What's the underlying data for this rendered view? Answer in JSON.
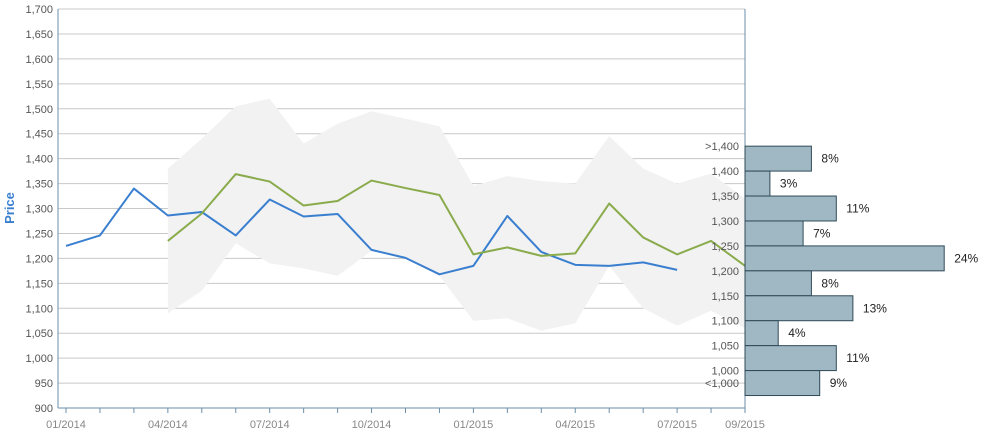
{
  "chart_data": {
    "type": "line",
    "ylabel": "Price",
    "ylim": [
      900,
      1700
    ],
    "yticks": [
      900,
      950,
      1000,
      1050,
      1100,
      1150,
      1200,
      1250,
      1300,
      1350,
      1400,
      1450,
      1500,
      1550,
      1600,
      1650,
      1700
    ],
    "ytick_labels": [
      "900",
      "950",
      "1,000",
      "1,050",
      "1,100",
      "1,150",
      "1,200",
      "1,250",
      "1,300",
      "1,350",
      "1,400",
      "1,450",
      "1,500",
      "1,550",
      "1,600",
      "1,650",
      "1,700"
    ],
    "xlim": [
      "2014-01",
      "2015-09"
    ],
    "xtick_labels": [
      {
        "date": "2014-01",
        "label": "01/2014"
      },
      {
        "date": "2014-04",
        "label": "04/2014"
      },
      {
        "date": "2014-07",
        "label": "07/2014"
      },
      {
        "date": "2014-10",
        "label": "10/2014"
      },
      {
        "date": "2015-01",
        "label": "01/2015"
      },
      {
        "date": "2015-04",
        "label": "04/2015"
      },
      {
        "date": "2015-07",
        "label": "07/2015"
      },
      {
        "date": "2015-09",
        "label": "09/2015"
      }
    ],
    "grid": true,
    "colors": {
      "series_blue": "#3a7fcf",
      "series_green": "#8aab4c",
      "band": "#f2f2f2",
      "bar_fill": "#a0b8c4",
      "bar_stroke": "#2f4a58",
      "axis": "#6b8fa8",
      "grid": "#c8c8c8",
      "tick_text": "#555555",
      "ylabel": "#3a7fcf"
    },
    "series": [
      {
        "color": "blue",
        "x": [
          "2014-01",
          "2014-02",
          "2014-03",
          "2014-04",
          "2014-05",
          "2014-06",
          "2014-07",
          "2014-08",
          "2014-09",
          "2014-10",
          "2014-11",
          "2014-12",
          "2015-01",
          "2015-02",
          "2015-03",
          "2015-04",
          "2015-05",
          "2015-06",
          "2015-07"
        ],
        "values": [
          1225,
          1246,
          1340,
          1286,
          1293,
          1246,
          1318,
          1284,
          1289,
          1217,
          1201,
          1168,
          1185,
          1285,
          1213,
          1187,
          1185,
          1192,
          1177
        ]
      },
      {
        "color": "green",
        "x": [
          "2014-04",
          "2014-05",
          "2014-06",
          "2014-07",
          "2014-08",
          "2014-09",
          "2014-10",
          "2014-11",
          "2014-12",
          "2015-01",
          "2015-02",
          "2015-03",
          "2015-04",
          "2015-05",
          "2015-06",
          "2015-07",
          "2015-08",
          "2015-09"
        ],
        "values": [
          1235,
          1290,
          1369,
          1354,
          1306,
          1315,
          1356,
          1341,
          1327,
          1208,
          1222,
          1205,
          1210,
          1310,
          1242,
          1208,
          1235,
          1185
        ]
      }
    ],
    "band": {
      "x": [
        "2014-04",
        "2014-05",
        "2014-06",
        "2014-07",
        "2014-08",
        "2014-09",
        "2014-10",
        "2014-11",
        "2014-12",
        "2015-01",
        "2015-02",
        "2015-03",
        "2015-04",
        "2015-05",
        "2015-06",
        "2015-07",
        "2015-08",
        "2015-09"
      ],
      "upper": [
        1380,
        1440,
        1505,
        1520,
        1430,
        1470,
        1495,
        1480,
        1465,
        1345,
        1365,
        1355,
        1350,
        1445,
        1380,
        1350,
        1370,
        1320
      ],
      "lower": [
        1090,
        1135,
        1230,
        1190,
        1180,
        1165,
        1215,
        1200,
        1165,
        1075,
        1080,
        1055,
        1070,
        1185,
        1100,
        1065,
        1095,
        1060
      ]
    },
    "distribution": [
      {
        "label": ">1,400",
        "center": 1400,
        "value": 8,
        "text": "8%"
      },
      {
        "label": "1,400",
        "center": 1350,
        "value": 3,
        "text": "3%"
      },
      {
        "label": "1,350",
        "center": 1300,
        "value": 11,
        "text": "11%"
      },
      {
        "label": "1,300",
        "center": 1250,
        "value": 7,
        "text": "7%"
      },
      {
        "label": "1,250",
        "center": 1200,
        "value": 24,
        "text": "24%"
      },
      {
        "label": "1,200",
        "center": 1150,
        "value": 8,
        "text": "8%"
      },
      {
        "label": "1,150",
        "center": 1100,
        "value": 13,
        "text": "13%"
      },
      {
        "label": "1,100",
        "center": 1050,
        "value": 4,
        "text": "4%"
      },
      {
        "label": "1,050",
        "center": 1000,
        "value": 11,
        "text": "11%"
      },
      {
        "label": "1,000",
        "center": 950,
        "value": 9,
        "text": "9%"
      }
    ],
    "distribution_extra_labels": [
      {
        "label": "<1,000",
        "value": 950
      }
    ]
  }
}
